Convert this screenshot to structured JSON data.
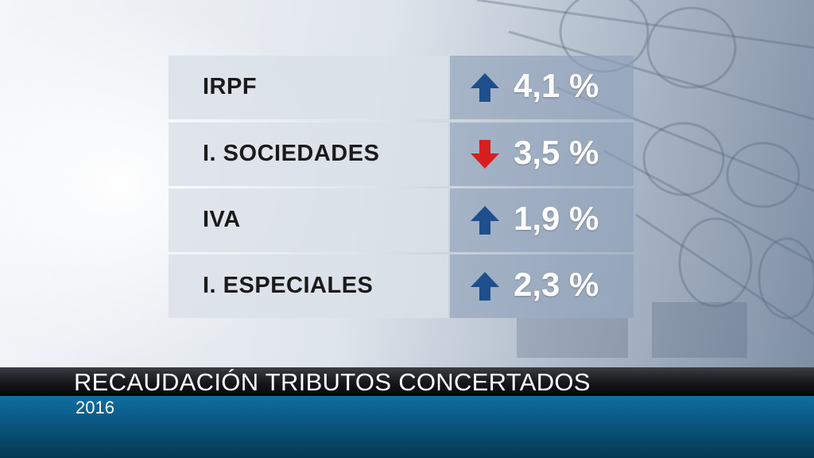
{
  "rows": [
    {
      "label": "IRPF",
      "value": "4,1 %",
      "direction": "up",
      "arrow_icon": "arrow-up-icon"
    },
    {
      "label": "I. SOCIEDADES",
      "value": "3,5 %",
      "direction": "down",
      "arrow_icon": "arrow-down-icon"
    },
    {
      "label": "IVA",
      "value": "1,9 %",
      "direction": "up",
      "arrow_icon": "arrow-up-icon"
    },
    {
      "label": "I. ESPECIALES",
      "value": "2,3 %",
      "direction": "up",
      "arrow_icon": "arrow-up-icon"
    }
  ],
  "colors": {
    "up": "#1e4f8c",
    "down": "#d81e1e"
  },
  "caption": {
    "title": "RECAUDACIÓN TRIBUTOS CONCERTADOS",
    "subtitle": "2016"
  }
}
